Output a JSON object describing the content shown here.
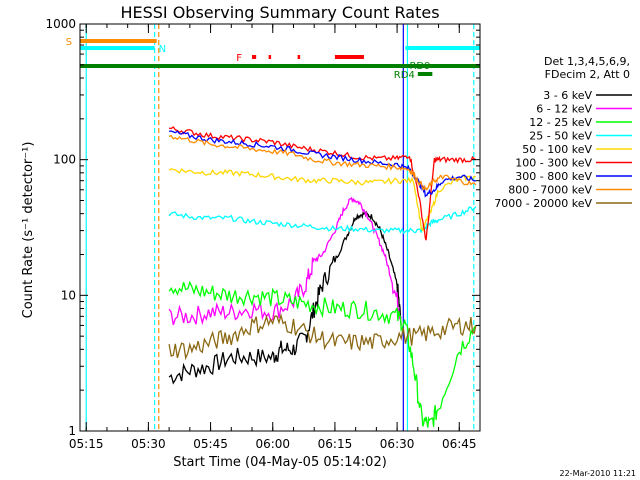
{
  "chart_data": {
    "type": "line",
    "title": "HESSI Observing Summary Count Rates",
    "xlabel": "Start Time (04-May-05 05:14:02)",
    "ylabel": "Count Rate (s⁻¹ detector⁻¹)",
    "y_scale": "log",
    "ylim": [
      1,
      1000
    ],
    "xlim_minutes": [
      313.5,
      410
    ],
    "x_ticks": [
      {
        "min": 315,
        "label": "05:15"
      },
      {
        "min": 330,
        "label": "05:30"
      },
      {
        "min": 345,
        "label": "05:45"
      },
      {
        "min": 360,
        "label": "06:00"
      },
      {
        "min": 375,
        "label": "06:15"
      },
      {
        "min": 390,
        "label": "06:30"
      },
      {
        "min": 405,
        "label": "06:45"
      }
    ],
    "y_ticks": [
      {
        "value": 1,
        "label": "1"
      },
      {
        "value": 10,
        "label": "10"
      },
      {
        "value": 100,
        "label": "100"
      },
      {
        "value": 1000,
        "label": "1000"
      }
    ],
    "legend_header": [
      "Det 1,3,4,5,6,9,",
      "FDecim 2, Att 0"
    ],
    "footer_date": "22-Mar-2010 11:21",
    "series": [
      {
        "name": "3 - 6 keV",
        "color": "#000000",
        "x": [
          335,
          340,
          345,
          350,
          355,
          360,
          362,
          365,
          368,
          370,
          372,
          375,
          378,
          380,
          382,
          384,
          386,
          388,
          390,
          391
        ],
        "y": [
          2.5,
          2.8,
          3,
          3.5,
          3.5,
          3.5,
          4,
          4,
          5,
          8,
          12,
          18,
          28,
          38,
          40,
          38,
          30,
          20,
          12,
          6
        ]
      },
      {
        "name": "6 - 12 keV",
        "color": "#ff00ff",
        "x": [
          335,
          340,
          345,
          350,
          355,
          360,
          365,
          368,
          370,
          372,
          375,
          377,
          379,
          381,
          383,
          385,
          387,
          389,
          391
        ],
        "y": [
          7,
          7,
          7.5,
          7.5,
          8,
          7.5,
          9,
          12,
          18,
          20,
          30,
          42,
          52,
          48,
          38,
          28,
          20,
          12,
          7
        ]
      },
      {
        "name": "12 - 25 keV",
        "color": "#00ff00",
        "x": [
          335,
          340,
          345,
          350,
          355,
          360,
          365,
          370,
          375,
          380,
          385,
          390,
          392,
          394,
          396,
          398,
          400,
          405,
          409
        ],
        "y": [
          12,
          11,
          10.5,
          10,
          10,
          9.5,
          9,
          8.5,
          8,
          8,
          7.5,
          7,
          6,
          3,
          1.2,
          1.1,
          1.5,
          4,
          6
        ]
      },
      {
        "name": "25 - 50 keV",
        "color": "#00ffff",
        "x": [
          335,
          340,
          345,
          350,
          355,
          360,
          365,
          370,
          375,
          380,
          385,
          390,
          394,
          396,
          398,
          400,
          405,
          409
        ],
        "y": [
          40,
          38,
          37,
          37,
          35,
          34,
          33,
          32,
          31,
          31,
          30,
          30,
          30,
          30,
          34,
          36,
          40,
          45
        ]
      },
      {
        "name": "50 - 100 keV",
        "color": "#ffd700",
        "x": [
          335,
          340,
          345,
          350,
          355,
          360,
          365,
          370,
          375,
          380,
          385,
          390,
          394,
          396,
          398,
          400,
          405,
          409
        ],
        "y": [
          85,
          82,
          80,
          80,
          78,
          75,
          72,
          70,
          70,
          68,
          68,
          70,
          70,
          30,
          40,
          60,
          72,
          75
        ]
      },
      {
        "name": "100 - 300 keV",
        "color": "#ff0000",
        "x": [
          335,
          340,
          345,
          350,
          355,
          360,
          365,
          370,
          375,
          380,
          385,
          390,
          393,
          395,
          397,
          399,
          401,
          405,
          409
        ],
        "y": [
          170,
          160,
          150,
          145,
          140,
          135,
          125,
          118,
          112,
          105,
          102,
          102,
          108,
          60,
          25,
          100,
          100,
          100,
          100
        ]
      },
      {
        "name": "300 - 800 keV",
        "color": "#0000ff",
        "x": [
          335,
          340,
          345,
          350,
          355,
          360,
          365,
          370,
          375,
          380,
          385,
          390,
          393,
          395,
          397,
          399,
          401,
          405,
          409
        ],
        "y": [
          160,
          150,
          140,
          135,
          130,
          125,
          118,
          110,
          105,
          100,
          95,
          92,
          85,
          70,
          55,
          60,
          70,
          75,
          70
        ]
      },
      {
        "name": "800 - 7000 keV",
        "color": "#ff8c00",
        "x": [
          335,
          340,
          345,
          350,
          355,
          360,
          365,
          370,
          375,
          380,
          385,
          390,
          393,
          395,
          397,
          399,
          401,
          405,
          409
        ],
        "y": [
          150,
          140,
          130,
          125,
          120,
          115,
          110,
          100,
          95,
          92,
          90,
          88,
          85,
          70,
          60,
          70,
          75,
          70,
          65
        ]
      },
      {
        "name": "7000 - 20000 keV",
        "color": "#8b6914",
        "x": [
          335,
          340,
          345,
          350,
          355,
          360,
          365,
          370,
          375,
          380,
          385,
          390,
          395,
          400,
          405,
          409
        ],
        "y": [
          4,
          4,
          4.5,
          5,
          6,
          6.5,
          6,
          5,
          4.5,
          4.5,
          4.5,
          5,
          5,
          5.5,
          6,
          6
        ]
      }
    ],
    "flags": [
      {
        "label": "S",
        "color": "#ff8c00",
        "segments": [
          [
            313.5,
            332
          ]
        ]
      },
      {
        "label": "N",
        "color": "#00ffff",
        "segments": [
          [
            313.5,
            331.5
          ],
          [
            392,
            410
          ]
        ]
      },
      {
        "label": "F",
        "color": "#ff0000",
        "segments": [
          [
            355,
            356
          ],
          [
            359,
            359.6
          ],
          [
            366,
            366.6
          ],
          [
            375,
            382
          ]
        ]
      },
      {
        "label": "RD9",
        "color": "#008000",
        "segments": [
          [
            313.5,
            410
          ]
        ]
      },
      {
        "label": "RD4",
        "color": "#008000",
        "segments": [
          [
            395,
            398.5
          ]
        ]
      }
    ],
    "vertical_lines": [
      {
        "min": 315,
        "color": "#00ffff",
        "dashed": false
      },
      {
        "min": 331.5,
        "color": "#00ffff",
        "dashed": true
      },
      {
        "min": 332.5,
        "color": "#ff8c00",
        "dashed": true
      },
      {
        "min": 391.5,
        "color": "#0000ff",
        "dashed": false
      },
      {
        "min": 392.5,
        "color": "#00ffff",
        "dashed": false
      },
      {
        "min": 408.5,
        "color": "#00ffff",
        "dashed": true
      }
    ]
  }
}
